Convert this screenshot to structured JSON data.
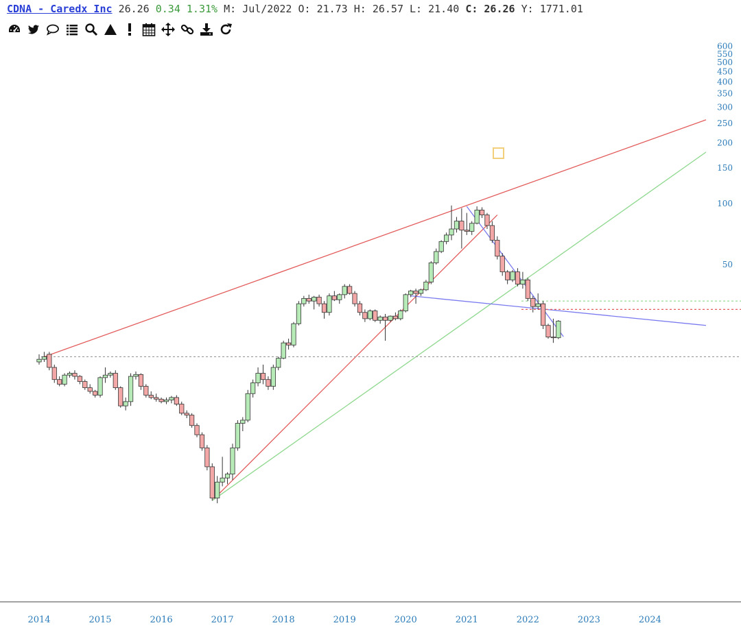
{
  "header": {
    "ticker": "CDNA - Caredx Inc",
    "price": "26.26",
    "change": "0.34",
    "change_pct": "1.31%",
    "period_label": "M:",
    "period": "Jul/2022",
    "open_label": "O:",
    "open": "21.73",
    "high_label": "H:",
    "high": "26.57",
    "low_label": "L:",
    "low": "21.40",
    "close_label": "C:",
    "close": "26.26",
    "y_label": "Y:",
    "y": "1771.01"
  },
  "toolbar": [
    {
      "name": "dashboard-icon"
    },
    {
      "name": "twitter-icon"
    },
    {
      "name": "comment-icon"
    },
    {
      "name": "list-icon"
    },
    {
      "name": "search-icon"
    },
    {
      "name": "triangle-icon"
    },
    {
      "name": "exclamation-icon"
    },
    {
      "name": "calendar-icon"
    },
    {
      "name": "move-icon"
    },
    {
      "name": "link-icon"
    },
    {
      "name": "download-icon"
    },
    {
      "name": "refresh-icon"
    }
  ],
  "chart_data": {
    "type": "candlestick",
    "title": "",
    "scale": "log",
    "y_ticks": [
      "600",
      "550",
      "500",
      "450",
      "400",
      "350",
      "300",
      "250",
      "200",
      "150",
      "100",
      "50"
    ],
    "x_ticks": [
      "2014",
      "2015",
      "2016",
      "2017",
      "2018",
      "2019",
      "2020",
      "2021",
      "2022",
      "2023",
      "2024"
    ],
    "colors": {
      "up": "#b6eab6",
      "down": "#f3a7a7",
      "axis_text": "#2b7bb9"
    },
    "candles_approx": [
      [
        "2014-01",
        16.5,
        18.0,
        16.0,
        17.0
      ],
      [
        "2014-02",
        17.0,
        18.5,
        16.5,
        17.5
      ],
      [
        "2014-03",
        18.0,
        18.5,
        15.0,
        15.5
      ],
      [
        "2014-04",
        15.5,
        16.0,
        13.0,
        13.5
      ],
      [
        "2014-05",
        13.5,
        14.0,
        12.5,
        12.8
      ],
      [
        "2014-06",
        12.8,
        14.5,
        12.5,
        14.2
      ],
      [
        "2014-07",
        14.2,
        14.8,
        13.8,
        14.5
      ],
      [
        "2014-08",
        14.5,
        15.0,
        13.5,
        14.0
      ],
      [
        "2014-09",
        14.0,
        14.2,
        12.8,
        13.2
      ],
      [
        "2014-10",
        13.2,
        13.5,
        12.0,
        12.3
      ],
      [
        "2014-11",
        12.3,
        12.8,
        11.5,
        11.8
      ],
      [
        "2014-12",
        11.8,
        12.0,
        11.0,
        11.3
      ],
      [
        "2015-01",
        11.3,
        14.0,
        11.0,
        13.8
      ],
      [
        "2015-02",
        13.8,
        15.5,
        13.0,
        14.2
      ],
      [
        "2015-03",
        14.2,
        14.8,
        13.8,
        14.5
      ],
      [
        "2015-04",
        14.5,
        15.0,
        12.0,
        12.3
      ],
      [
        "2015-05",
        12.3,
        12.5,
        9.8,
        10.0
      ],
      [
        "2015-06",
        10.0,
        11.0,
        9.5,
        10.5
      ],
      [
        "2015-07",
        10.5,
        14.5,
        10.0,
        14.0
      ],
      [
        "2015-08",
        14.0,
        14.8,
        13.5,
        14.3
      ],
      [
        "2015-09",
        14.3,
        14.5,
        12.0,
        12.5
      ],
      [
        "2015-10",
        12.5,
        12.8,
        11.0,
        11.3
      ],
      [
        "2015-11",
        11.3,
        11.8,
        10.8,
        11.0
      ],
      [
        "2015-12",
        11.0,
        11.5,
        10.5,
        10.8
      ],
      [
        "2016-01",
        10.8,
        11.0,
        10.3,
        10.5
      ],
      [
        "2016-02",
        10.5,
        11.0,
        10.2,
        10.7
      ],
      [
        "2016-03",
        10.7,
        11.2,
        10.3,
        11.0
      ],
      [
        "2016-04",
        11.0,
        11.3,
        10.0,
        10.2
      ],
      [
        "2016-05",
        10.2,
        10.5,
        9.0,
        9.2
      ],
      [
        "2016-06",
        9.2,
        9.5,
        8.7,
        9.0
      ],
      [
        "2016-07",
        9.0,
        9.2,
        7.8,
        8.0
      ],
      [
        "2016-08",
        8.0,
        8.2,
        7.0,
        7.2
      ],
      [
        "2016-09",
        7.2,
        7.4,
        6.0,
        6.2
      ],
      [
        "2016-10",
        6.2,
        6.4,
        4.8,
        5.0
      ],
      [
        "2016-11",
        5.0,
        5.2,
        3.4,
        3.5
      ],
      [
        "2016-12",
        3.5,
        4.5,
        3.3,
        4.2
      ],
      [
        "2017-01",
        4.2,
        5.6,
        4.0,
        4.4
      ],
      [
        "2017-02",
        4.4,
        4.7,
        4.1,
        4.6
      ],
      [
        "2017-03",
        4.6,
        6.5,
        4.3,
        6.2
      ],
      [
        "2017-04",
        6.2,
        8.5,
        6.0,
        8.2
      ],
      [
        "2017-05",
        8.2,
        8.8,
        7.5,
        8.5
      ],
      [
        "2017-06",
        8.5,
        12.0,
        8.3,
        11.5
      ],
      [
        "2017-07",
        11.5,
        13.5,
        11.0,
        13.0
      ],
      [
        "2017-08",
        13.0,
        15.5,
        12.5,
        14.5
      ],
      [
        "2017-09",
        14.5,
        16.0,
        12.8,
        13.5
      ],
      [
        "2017-10",
        13.5,
        14.0,
        12.0,
        12.5
      ],
      [
        "2017-11",
        12.5,
        16.0,
        12.0,
        15.5
      ],
      [
        "2017-12",
        15.5,
        17.5,
        15.0,
        17.2
      ],
      [
        "2018-01",
        17.2,
        21.0,
        17.0,
        20.5
      ],
      [
        "2018-02",
        20.5,
        21.5,
        19.0,
        20.0
      ],
      [
        "2018-03",
        20.0,
        26.0,
        19.5,
        25.5
      ],
      [
        "2018-04",
        25.5,
        33.0,
        25.0,
        32.0
      ],
      [
        "2018-05",
        32.0,
        35.0,
        31.0,
        34.0
      ],
      [
        "2018-06",
        34.0,
        35.5,
        32.0,
        33.0
      ],
      [
        "2018-07",
        33.0,
        35.0,
        30.0,
        34.5
      ],
      [
        "2018-08",
        34.5,
        35.5,
        31.0,
        32.0
      ],
      [
        "2018-09",
        32.0,
        33.0,
        27.0,
        29.0
      ],
      [
        "2018-10",
        29.0,
        36.0,
        28.0,
        35.0
      ],
      [
        "2018-11",
        35.0,
        37.0,
        33.0,
        33.5
      ],
      [
        "2018-12",
        33.5,
        36.0,
        32.0,
        35.5
      ],
      [
        "2019-01",
        35.5,
        40.0,
        34.0,
        39.0
      ],
      [
        "2019-02",
        39.0,
        40.0,
        35.5,
        36.0
      ],
      [
        "2019-03",
        36.0,
        37.0,
        31.0,
        32.0
      ],
      [
        "2019-04",
        32.0,
        33.0,
        28.0,
        29.0
      ],
      [
        "2019-05",
        29.0,
        30.0,
        26.0,
        27.0
      ],
      [
        "2019-06",
        27.0,
        30.0,
        26.5,
        29.5
      ],
      [
        "2019-07",
        29.5,
        30.0,
        26.0,
        26.5
      ],
      [
        "2019-08",
        26.5,
        28.0,
        25.5,
        27.5
      ],
      [
        "2019-09",
        27.5,
        28.5,
        21.0,
        26.5
      ],
      [
        "2019-10",
        26.5,
        28.0,
        26.0,
        27.8
      ],
      [
        "2019-11",
        27.8,
        29.0,
        26.5,
        27.0
      ],
      [
        "2019-12",
        27.0,
        30.0,
        26.5,
        29.5
      ],
      [
        "2020-01",
        29.5,
        36.0,
        29.0,
        35.5
      ],
      [
        "2020-02",
        35.5,
        37.5,
        34.5,
        37.0
      ],
      [
        "2020-03",
        37.0,
        38.0,
        32.0,
        36.0
      ],
      [
        "2020-04",
        36.0,
        38.0,
        35.0,
        37.5
      ],
      [
        "2020-05",
        37.5,
        42.0,
        37.0,
        41.0
      ],
      [
        "2020-06",
        41.0,
        52.0,
        40.0,
        51.0
      ],
      [
        "2020-07",
        51.0,
        60.0,
        50.0,
        58.0
      ],
      [
        "2020-08",
        58.0,
        66.0,
        57.0,
        65.0
      ],
      [
        "2020-09",
        65.0,
        72.0,
        63.0,
        70.0
      ],
      [
        "2020-10",
        70.0,
        98.0,
        66.0,
        75.0
      ],
      [
        "2020-11",
        75.0,
        86.0,
        72.0,
        82.0
      ],
      [
        "2020-12",
        82.0,
        95.0,
        60.0,
        74.0
      ],
      [
        "2021-01",
        74.0,
        90.0,
        70.0,
        73.0
      ],
      [
        "2021-02",
        73.0,
        82.0,
        70.0,
        80.0
      ],
      [
        "2021-03",
        80.0,
        97.0,
        79.0,
        93.0
      ],
      [
        "2021-04",
        93.0,
        96.0,
        85.0,
        88.0
      ],
      [
        "2021-05",
        88.0,
        90.0,
        75.0,
        78.0
      ],
      [
        "2021-06",
        78.0,
        82.0,
        64.0,
        66.0
      ],
      [
        "2021-07",
        66.0,
        69.0,
        53.0,
        55.0
      ],
      [
        "2021-08",
        55.0,
        57.0,
        44.0,
        46.0
      ],
      [
        "2021-09",
        46.0,
        47.0,
        40.0,
        42.0
      ],
      [
        "2021-10",
        42.0,
        47.0,
        41.0,
        46.0
      ],
      [
        "2021-11",
        46.0,
        48.0,
        39.0,
        40.0
      ],
      [
        "2021-12",
        40.0,
        46.0,
        38.0,
        42.0
      ],
      [
        "2022-01",
        42.0,
        43.0,
        33.0,
        34.0
      ],
      [
        "2022-02",
        34.0,
        35.0,
        29.0,
        31.0
      ],
      [
        "2022-03",
        31.0,
        36.0,
        30.0,
        32.0
      ],
      [
        "2022-04",
        32.0,
        33.0,
        24.0,
        25.0
      ],
      [
        "2022-05",
        25.0,
        25.5,
        21.5,
        21.9
      ],
      [
        "2022-06",
        21.9,
        27.0,
        20.5,
        21.73
      ],
      [
        "2022-07",
        21.73,
        26.57,
        21.4,
        26.26
      ]
    ],
    "trendlines_approx": [
      {
        "color": "#e35b5b",
        "from": [
          "2014-02",
          17.5
        ],
        "to": [
          "2024-12",
          260
        ]
      },
      {
        "color": "#e35b5b",
        "from": [
          "2016-11",
          3.4
        ],
        "to": [
          "2021-07",
          88
        ]
      },
      {
        "color": "#8ed88e",
        "from": [
          "2016-11",
          3.4
        ],
        "to": [
          "2024-12",
          180
        ]
      },
      {
        "color": "#7a7af0",
        "from": [
          "2020-02",
          35
        ],
        "to": [
          "2024-12",
          25
        ]
      },
      {
        "color": "#7a7af0",
        "from": [
          "2021-01",
          97
        ],
        "to": [
          "2022-08",
          22
        ]
      },
      {
        "color": "#8ed88e",
        "dashed": true,
        "level": 33
      },
      {
        "color": "#e35b5b",
        "dashed": true,
        "level": 30
      },
      {
        "color": "#999999",
        "dashed": true,
        "level": 17.5
      }
    ]
  }
}
